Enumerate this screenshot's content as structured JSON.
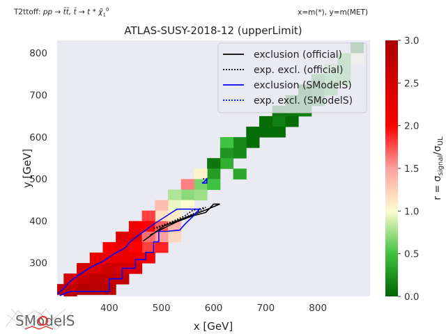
{
  "header": {
    "left_prefix": "T2ttoff: ",
    "process": "pp → t̃t̃, t̃ → t * χ̃",
    "process_sup": "0",
    "process_sub": "1",
    "right": "x=m(*), y=m(MET)"
  },
  "logo_text": "SModelS",
  "chart_data": {
    "type": "heatmap",
    "title": "ATLAS-SUSY-2018-12 (upperLimit)",
    "xlabel": "x [GeV]",
    "ylabel": "y [GeV]",
    "xlim": [
      300,
      900
    ],
    "ylim": [
      220,
      830
    ],
    "xticks": [
      400,
      500,
      600,
      700,
      800
    ],
    "yticks": [
      300,
      400,
      500,
      600,
      700,
      800
    ],
    "colorbar": {
      "label": "r = σsignal/σUL",
      "label_main": "r = σ",
      "label_sub1": "signal",
      "label_slash": "/σ",
      "label_sub2": "UL",
      "range": [
        0,
        3
      ],
      "ticks": [
        "0.0",
        "0.5",
        "1.0",
        "1.5",
        "2.0",
        "2.5",
        "3.0"
      ]
    },
    "grid_step": 25,
    "cells": [
      [
        875,
        812,
        0.1
      ],
      [
        875,
        787,
        1.0
      ],
      [
        850,
        787,
        0.5
      ],
      [
        850,
        762,
        0.5
      ],
      [
        825,
        762,
        0.7
      ],
      [
        825,
        737,
        0.55
      ],
      [
        800,
        737,
        0.3
      ],
      [
        800,
        712,
        0.2
      ],
      [
        775,
        712,
        0.05
      ],
      [
        775,
        687,
        0.15
      ],
      [
        750,
        687,
        0.1
      ],
      [
        750,
        662,
        0.1
      ],
      [
        725,
        662,
        0.1
      ],
      [
        725,
        637,
        0.15
      ],
      [
        700,
        637,
        0.05
      ],
      [
        700,
        612,
        0.05
      ],
      [
        675,
        612,
        0.05
      ],
      [
        675,
        587,
        0.05
      ],
      [
        650,
        587,
        0.2
      ],
      [
        650,
        562,
        0.2
      ],
      [
        625,
        562,
        0.25
      ],
      [
        625,
        537,
        0.4
      ],
      [
        600,
        537,
        0.1
      ],
      [
        600,
        512,
        0.3
      ],
      [
        575,
        512,
        1.05
      ],
      [
        575,
        487,
        0.65
      ],
      [
        550,
        487,
        1.6
      ],
      [
        550,
        462,
        0.7
      ],
      [
        525,
        462,
        0.8
      ],
      [
        525,
        437,
        0.95
      ],
      [
        500,
        437,
        1.35
      ],
      [
        500,
        412,
        1.15
      ],
      [
        475,
        412,
        1.8
      ],
      [
        475,
        387,
        2.0
      ],
      [
        450,
        387,
        2.15
      ],
      [
        450,
        362,
        2.3
      ],
      [
        425,
        362,
        2.35
      ],
      [
        425,
        337,
        2.25
      ],
      [
        400,
        337,
        2.1
      ],
      [
        400,
        312,
        2.2
      ],
      [
        375,
        312,
        2.3
      ],
      [
        375,
        287,
        2.4
      ],
      [
        350,
        287,
        2.5
      ],
      [
        350,
        262,
        2.65
      ],
      [
        325,
        262,
        2.5
      ],
      [
        325,
        237,
        2.7
      ],
      [
        300,
        237,
        2.8
      ],
      [
        650,
        512,
        0.35
      ],
      [
        625,
        587,
        0.5
      ],
      [
        725,
        612,
        0.05
      ],
      [
        750,
        637,
        0.05
      ],
      [
        775,
        662,
        0.15
      ],
      [
        800,
        687,
        0.25
      ],
      [
        825,
        712,
        0.5
      ],
      [
        850,
        737,
        0.55
      ],
      [
        550,
        437,
        1.0
      ],
      [
        525,
        412,
        1.1
      ],
      [
        575,
        462,
        0.75
      ],
      [
        600,
        487,
        0.5
      ],
      [
        500,
        387,
        1.7
      ],
      [
        525,
        387,
        1.4
      ],
      [
        525,
        362,
        1.2
      ],
      [
        500,
        362,
        1.5
      ],
      [
        475,
        362,
        1.65
      ],
      [
        475,
        337,
        1.8
      ],
      [
        450,
        337,
        2.0
      ],
      [
        450,
        312,
        2.2
      ],
      [
        425,
        312,
        2.3
      ],
      [
        425,
        287,
        2.5
      ],
      [
        400,
        287,
        2.6
      ],
      [
        400,
        262,
        2.7
      ],
      [
        375,
        262,
        2.75
      ],
      [
        375,
        237,
        2.8
      ],
      [
        350,
        237,
        2.85
      ],
      [
        325,
        212,
        2.9
      ],
      [
        450,
        287,
        2.4
      ],
      [
        425,
        262,
        2.7
      ],
      [
        400,
        237,
        2.85
      ],
      [
        475,
        312,
        2.1
      ],
      [
        500,
        337,
        1.9
      ]
    ],
    "series": [
      {
        "name": "exclusion (official)",
        "style": "solid",
        "color": "#000000",
        "points": [
          [
            465,
            352
          ],
          [
            505,
            388
          ],
          [
            540,
            405
          ],
          [
            585,
            426
          ],
          [
            612,
            440
          ],
          [
            600,
            440
          ],
          [
            585,
            420
          ],
          [
            560,
            412
          ],
          [
            530,
            398
          ],
          [
            505,
            383
          ],
          [
            478,
            366
          ]
        ]
      },
      {
        "name": "exp. excl. (official)",
        "style": "dotted",
        "color": "#000000",
        "points": [
          [
            485,
            382
          ],
          [
            520,
            398
          ],
          [
            545,
            412
          ],
          [
            560,
            425
          ],
          [
            585,
            432
          ],
          [
            570,
            422
          ],
          [
            545,
            408
          ],
          [
            518,
            395
          ],
          [
            490,
            382
          ]
        ]
      },
      {
        "name": "exclusion (SModelS)",
        "style": "solid",
        "color": "#0000ff",
        "points": [
          [
            305,
            222
          ],
          [
            325,
            232
          ],
          [
            350,
            232
          ],
          [
            375,
            232
          ],
          [
            380,
            232
          ],
          [
            400,
            232
          ],
          [
            400,
            262
          ],
          [
            425,
            262
          ],
          [
            425,
            287
          ],
          [
            430,
            287
          ],
          [
            450,
            287
          ],
          [
            450,
            308
          ],
          [
            470,
            308
          ],
          [
            470,
            325
          ],
          [
            485,
            325
          ],
          [
            485,
            350
          ],
          [
            495,
            350
          ],
          [
            495,
            375
          ],
          [
            510,
            375
          ],
          [
            535,
            378
          ],
          [
            545,
            392
          ],
          [
            560,
            410
          ],
          [
            573,
            428
          ],
          [
            552,
            428
          ],
          [
            530,
            428
          ],
          [
            515,
            416
          ],
          [
            500,
            404
          ],
          [
            485,
            392
          ],
          [
            470,
            378
          ],
          [
            455,
            365
          ],
          [
            440,
            350
          ],
          [
            430,
            335
          ],
          [
            410,
            322
          ],
          [
            390,
            305
          ],
          [
            365,
            290
          ],
          [
            345,
            274
          ],
          [
            325,
            256
          ],
          [
            310,
            236
          ],
          [
            300,
            226
          ]
        ]
      },
      {
        "name": "exp. excl. (SModelS)",
        "style": "dotted",
        "color": "#0000ff",
        "points": [
          [
            578,
            490
          ],
          [
            586,
            497
          ],
          [
            586,
            500
          ],
          [
            578,
            500
          ]
        ]
      }
    ],
    "blue_marker": [
      [
        580,
        490
      ],
      [
        587,
        500
      ],
      [
        587,
        490
      ]
    ],
    "legend_placement": "top-right",
    "grid": false
  }
}
